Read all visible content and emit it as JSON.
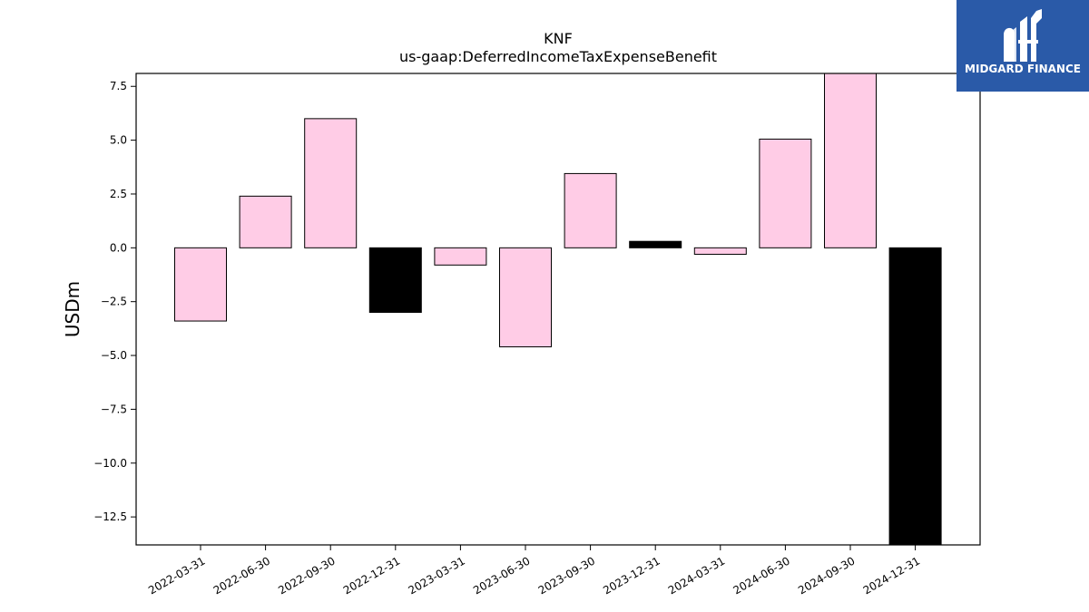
{
  "chart_data": {
    "type": "bar",
    "title": "KNF",
    "subtitle": "us-gaap:DeferredIncomeTaxExpenseBenefit",
    "xlabel": "",
    "ylabel": "USDm",
    "ylim": [
      -13.8,
      8.1
    ],
    "yticks": [
      {
        "value": 7.5,
        "label": "7.5"
      },
      {
        "value": 5.0,
        "label": "5.0"
      },
      {
        "value": 2.5,
        "label": "2.5"
      },
      {
        "value": 0.0,
        "label": "0.0"
      },
      {
        "value": -2.5,
        "label": "−2.5"
      },
      {
        "value": -5.0,
        "label": "−5.0"
      },
      {
        "value": -7.5,
        "label": "−7.5"
      },
      {
        "value": -10.0,
        "label": "−10.0"
      },
      {
        "value": -12.5,
        "label": "−12.5"
      }
    ],
    "categories": [
      "2022-03-31",
      "2022-06-30",
      "2022-09-30",
      "2022-12-31",
      "2023-03-31",
      "2023-06-30",
      "2023-09-30",
      "2023-12-31",
      "2024-03-31",
      "2024-06-30",
      "2024-09-30",
      "2024-12-31"
    ],
    "values": [
      -3.4,
      2.4,
      6.0,
      -3.0,
      -0.8,
      -4.6,
      3.45,
      0.3,
      -0.3,
      5.05,
      8.1,
      -13.8
    ],
    "bar_colors": [
      "#ffcce6",
      "#ffcce6",
      "#ffcce6",
      "#000000",
      "#ffcce6",
      "#ffcce6",
      "#ffcce6",
      "#000000",
      "#ffcce6",
      "#ffcce6",
      "#ffcce6",
      "#000000"
    ],
    "grid": false,
    "legend": "none"
  },
  "logo": {
    "text": "MIDGARD FINANCE",
    "background": "#2a5aa8"
  }
}
